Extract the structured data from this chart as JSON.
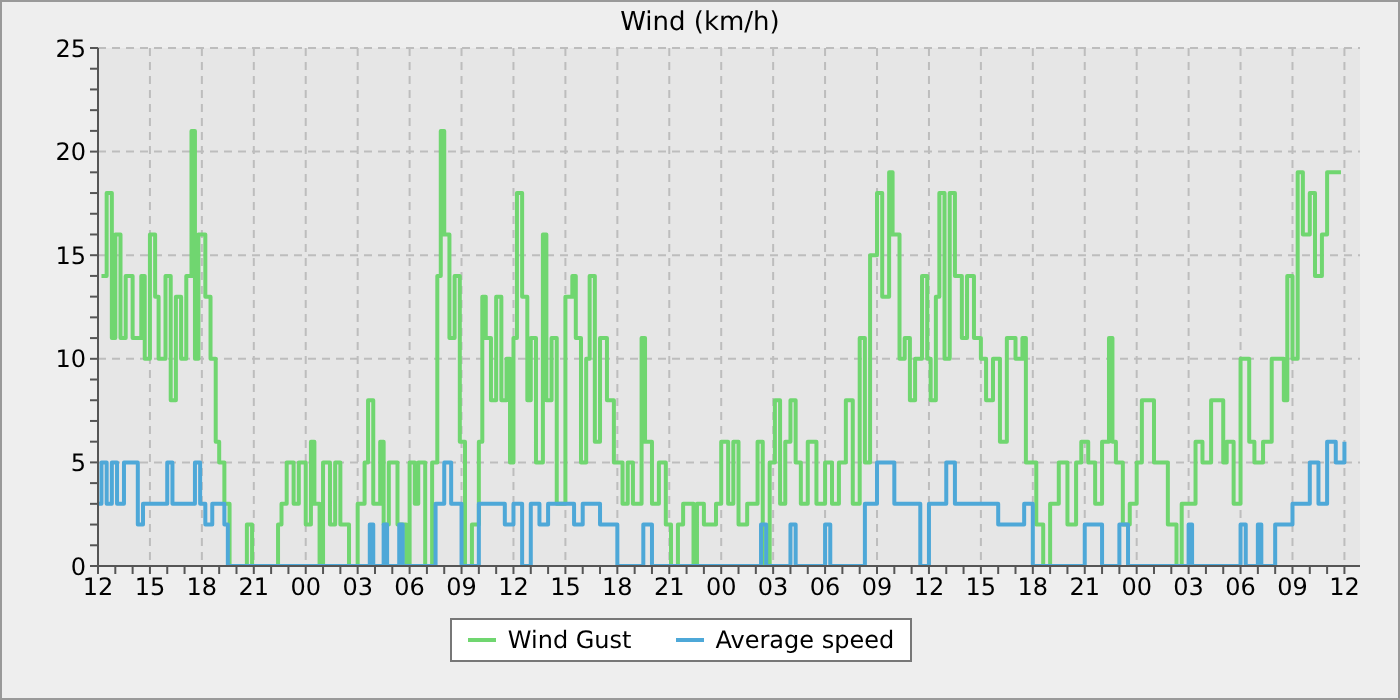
{
  "chart_data": {
    "type": "step",
    "title": "Wind (km/h)",
    "xlim": [
      12,
      84.9
    ],
    "ylim": [
      0,
      25
    ],
    "xticks": [
      12,
      {
        "value": 13,
        "label": null
      },
      {
        "value": 14,
        "label": null
      },
      15,
      {
        "value": 16,
        "label": null
      },
      {
        "value": 17,
        "label": null
      },
      18,
      {
        "value": 19,
        "label": null
      },
      {
        "value": 20,
        "label": null
      },
      21,
      {
        "value": 22,
        "label": null
      },
      {
        "value": 23,
        "label": null
      },
      {
        "value": 24,
        "label": "00"
      },
      {
        "value": 25,
        "label": null
      },
      {
        "value": 26,
        "label": null
      },
      {
        "value": 27,
        "label": "03"
      },
      {
        "value": 28,
        "label": null
      },
      {
        "value": 29,
        "label": null
      },
      {
        "value": 30,
        "label": "06"
      },
      {
        "value": 31,
        "label": null
      },
      {
        "value": 32,
        "label": null
      },
      {
        "value": 33,
        "label": "09"
      },
      {
        "value": 34,
        "label": null
      },
      {
        "value": 35,
        "label": null
      },
      {
        "value": 36,
        "label": "12"
      },
      {
        "value": 37,
        "label": null
      },
      {
        "value": 38,
        "label": null
      },
      {
        "value": 39,
        "label": "15"
      },
      {
        "value": 40,
        "label": null
      },
      {
        "value": 41,
        "label": null
      },
      {
        "value": 42,
        "label": "18"
      },
      {
        "value": 43,
        "label": null
      },
      {
        "value": 44,
        "label": null
      },
      {
        "value": 45,
        "label": "21"
      },
      {
        "value": 46,
        "label": null
      },
      {
        "value": 47,
        "label": null
      },
      {
        "value": 48,
        "label": "00"
      },
      {
        "value": 49,
        "label": null
      },
      {
        "value": 50,
        "label": null
      },
      {
        "value": 51,
        "label": "03"
      },
      {
        "value": 52,
        "label": null
      },
      {
        "value": 53,
        "label": null
      },
      {
        "value": 54,
        "label": "06"
      },
      {
        "value": 55,
        "label": null
      },
      {
        "value": 56,
        "label": null
      },
      {
        "value": 57,
        "label": "09"
      },
      {
        "value": 58,
        "label": null
      },
      {
        "value": 59,
        "label": null
      },
      {
        "value": 60,
        "label": "12"
      },
      {
        "value": 61,
        "label": null
      },
      {
        "value": 62,
        "label": null
      },
      {
        "value": 63,
        "label": "15"
      },
      {
        "value": 64,
        "label": null
      },
      {
        "value": 65,
        "label": null
      },
      {
        "value": 66,
        "label": "18"
      },
      {
        "value": 67,
        "label": null
      },
      {
        "value": 68,
        "label": null
      },
      {
        "value": 69,
        "label": "21"
      },
      {
        "value": 70,
        "label": null
      },
      {
        "value": 71,
        "label": null
      },
      {
        "value": 72,
        "label": "00"
      },
      {
        "value": 73,
        "label": null
      },
      {
        "value": 74,
        "label": null
      },
      {
        "value": 75,
        "label": "03"
      },
      {
        "value": 76,
        "label": null
      },
      {
        "value": 77,
        "label": null
      },
      {
        "value": 78,
        "label": "06"
      },
      {
        "value": 79,
        "label": null
      },
      {
        "value": 80,
        "label": null
      },
      {
        "value": 81,
        "label": "09"
      },
      {
        "value": 82,
        "label": null
      },
      {
        "value": 83,
        "label": null
      },
      {
        "value": 84,
        "label": "12"
      }
    ],
    "yticks": [
      0,
      {
        "value": 1,
        "label": null
      },
      {
        "value": 2,
        "label": null
      },
      {
        "value": 3,
        "label": null
      },
      {
        "value": 4,
        "label": null
      },
      5,
      {
        "value": 6,
        "label": null
      },
      {
        "value": 7,
        "label": null
      },
      {
        "value": 8,
        "label": null
      },
      {
        "value": 9,
        "label": null
      },
      10,
      {
        "value": 11,
        "label": null
      },
      {
        "value": 12,
        "label": null
      },
      {
        "value": 13,
        "label": null
      },
      {
        "value": 14,
        "label": null
      },
      15,
      {
        "value": 16,
        "label": null
      },
      {
        "value": 17,
        "label": null
      },
      {
        "value": 18,
        "label": null
      },
      {
        "value": 19,
        "label": null
      },
      20,
      {
        "value": 21,
        "label": null
      },
      {
        "value": 22,
        "label": null
      },
      {
        "value": 23,
        "label": null
      },
      {
        "value": 24,
        "label": null
      },
      25
    ],
    "grid": true,
    "legend": "bottom",
    "marker": "none",
    "line_style": "solid",
    "series": [
      {
        "name": "Wind Gust",
        "color": "#70d670",
        "x": [
          12.2,
          12.5,
          12.8,
          13.0,
          13.3,
          13.6,
          14.0,
          14.5,
          14.7,
          15.0,
          15.3,
          15.5,
          15.9,
          16.2,
          16.5,
          16.8,
          17.1,
          17.4,
          17.6,
          17.8,
          18.2,
          18.5,
          18.8,
          19.0,
          19.3,
          19.6,
          20.6,
          20.9,
          22.4,
          22.6,
          22.9,
          23.3,
          23.6,
          24.0,
          24.3,
          24.5,
          24.8,
          25.0,
          25.4,
          25.7,
          26.0,
          26.5,
          27.0,
          27.4,
          27.6,
          27.9,
          28.3,
          28.5,
          28.8,
          29.3,
          29.8,
          30.0,
          30.3,
          30.5,
          30.9,
          31.3,
          31.6,
          31.8,
          32.0,
          32.3,
          32.6,
          32.9,
          33.2,
          33.6,
          34.0,
          34.2,
          34.4,
          34.7,
          35.0,
          35.3,
          35.6,
          35.8,
          36.0,
          36.2,
          36.5,
          36.8,
          37.0,
          37.3,
          37.7,
          37.9,
          38.2,
          38.5,
          39.0,
          39.4,
          39.6,
          39.9,
          40.2,
          40.4,
          40.7,
          41.0,
          41.4,
          41.8,
          42.3,
          42.6,
          42.9,
          43.4,
          43.6,
          44.0,
          44.4,
          44.8,
          45.1,
          45.5,
          45.8,
          46.4,
          46.6,
          47.0,
          47.7,
          48.0,
          48.4,
          48.7,
          49.0,
          49.5,
          50.1,
          50.4,
          50.8,
          51.1,
          51.4,
          51.7,
          52.0,
          52.3,
          52.6,
          53.0,
          53.5,
          54.0,
          54.4,
          54.8,
          55.2,
          55.6,
          56.0,
          56.3,
          56.6,
          57.0,
          57.3,
          57.7,
          57.9,
          58.3,
          58.6,
          58.9,
          59.2,
          59.6,
          59.9,
          60.1,
          60.4,
          60.6,
          60.9,
          61.2,
          61.5,
          61.9,
          62.2,
          62.6,
          63.0,
          63.3,
          63.7,
          64.1,
          64.5,
          65.0,
          65.4,
          65.6,
          66.0,
          66.2,
          66.6,
          67.0,
          67.5,
          68.0,
          68.5,
          68.8,
          69.2,
          69.6,
          70.0,
          70.4,
          70.6,
          70.8,
          71.2,
          71.6,
          72.0,
          72.3,
          73.0,
          73.2,
          73.8,
          74.3,
          74.6,
          75.0,
          75.4,
          75.8,
          76.3,
          77.0,
          77.2,
          77.6,
          78.0,
          78.5,
          78.8,
          79.3,
          79.8,
          80.5,
          80.7,
          81.0,
          81.3,
          81.6,
          82.0,
          82.3,
          82.7,
          83.0,
          83.8
        ],
        "values": [
          14,
          18,
          11,
          16,
          11,
          14,
          11,
          14,
          10,
          16,
          13,
          10,
          14,
          8,
          13,
          10,
          14,
          21,
          10,
          16,
          13,
          10,
          6,
          5,
          3,
          0,
          2,
          0,
          2,
          3,
          5,
          3,
          5,
          2,
          6,
          3,
          0,
          5,
          2,
          5,
          2,
          0,
          3,
          5,
          8,
          3,
          6,
          2,
          5,
          2,
          0,
          5,
          3,
          5,
          0,
          5,
          14,
          21,
          16,
          11,
          14,
          6,
          0,
          2,
          6,
          13,
          11,
          8,
          13,
          8,
          10,
          5,
          11,
          18,
          13,
          8,
          11,
          5,
          16,
          8,
          11,
          3,
          13,
          14,
          11,
          5,
          10,
          14,
          6,
          11,
          8,
          5,
          3,
          5,
          3,
          11,
          6,
          3,
          5,
          2,
          0,
          2,
          3,
          0,
          3,
          2,
          3,
          6,
          3,
          6,
          2,
          3,
          6,
          0,
          5,
          8,
          3,
          6,
          8,
          5,
          3,
          6,
          3,
          5,
          3,
          5,
          8,
          3,
          11,
          5,
          15,
          18,
          13,
          19,
          16,
          10,
          11,
          8,
          10,
          14,
          10,
          8,
          13,
          18,
          10,
          18,
          14,
          11,
          14,
          11,
          10,
          8,
          10,
          6,
          11,
          10,
          11,
          5,
          5,
          2,
          0,
          3,
          5,
          2,
          5,
          6,
          5,
          3,
          6,
          11,
          6,
          5,
          2,
          3,
          5,
          8,
          5,
          5,
          2,
          0,
          3,
          3,
          6,
          5,
          8,
          5,
          6,
          3,
          10,
          6,
          5,
          6,
          10,
          8,
          14,
          10,
          19,
          16,
          18,
          14,
          16,
          19,
          19
        ]
      },
      {
        "name": "Average speed",
        "color": "#4ea8d8",
        "x": [
          12.0,
          12.2,
          12.5,
          12.8,
          13.1,
          13.5,
          14.3,
          14.6,
          16.0,
          16.3,
          17.6,
          17.9,
          18.2,
          18.6,
          19.3,
          19.5,
          27.7,
          27.9,
          28.5,
          28.7,
          29.4,
          29.6,
          31.5,
          32.0,
          32.4,
          33.0,
          34.0,
          35.0,
          35.5,
          36.0,
          36.5,
          37.0,
          37.5,
          38.0,
          39.5,
          40.0,
          41.0,
          42.0,
          43.5,
          44.0,
          50.3,
          50.6,
          52.0,
          52.3,
          54.0,
          54.3,
          55.0,
          56.3,
          57.0,
          58.0,
          59.0,
          59.5,
          60.0,
          61.0,
          61.5,
          62.0,
          63.0,
          64.0,
          65.5,
          66.0,
          69.0,
          70.0,
          71.0,
          71.5,
          75.0,
          75.2,
          78.0,
          78.3,
          79.0,
          79.2,
          80.0,
          81.0,
          82.0,
          82.5,
          83.0,
          83.5,
          84.0
        ],
        "values": [
          3,
          5,
          3,
          5,
          3,
          5,
          2,
          3,
          5,
          3,
          5,
          3,
          2,
          3,
          2,
          0,
          2,
          0,
          2,
          0,
          2,
          0,
          3,
          5,
          3,
          0,
          3,
          3,
          2,
          3,
          0,
          3,
          2,
          3,
          2,
          3,
          2,
          0,
          2,
          0,
          2,
          0,
          2,
          0,
          2,
          0,
          0,
          3,
          5,
          3,
          3,
          0,
          3,
          5,
          3,
          3,
          3,
          2,
          3,
          0,
          2,
          0,
          2,
          0,
          2,
          0,
          2,
          0,
          2,
          0,
          2,
          3,
          5,
          3,
          6,
          5,
          6
        ]
      }
    ]
  }
}
